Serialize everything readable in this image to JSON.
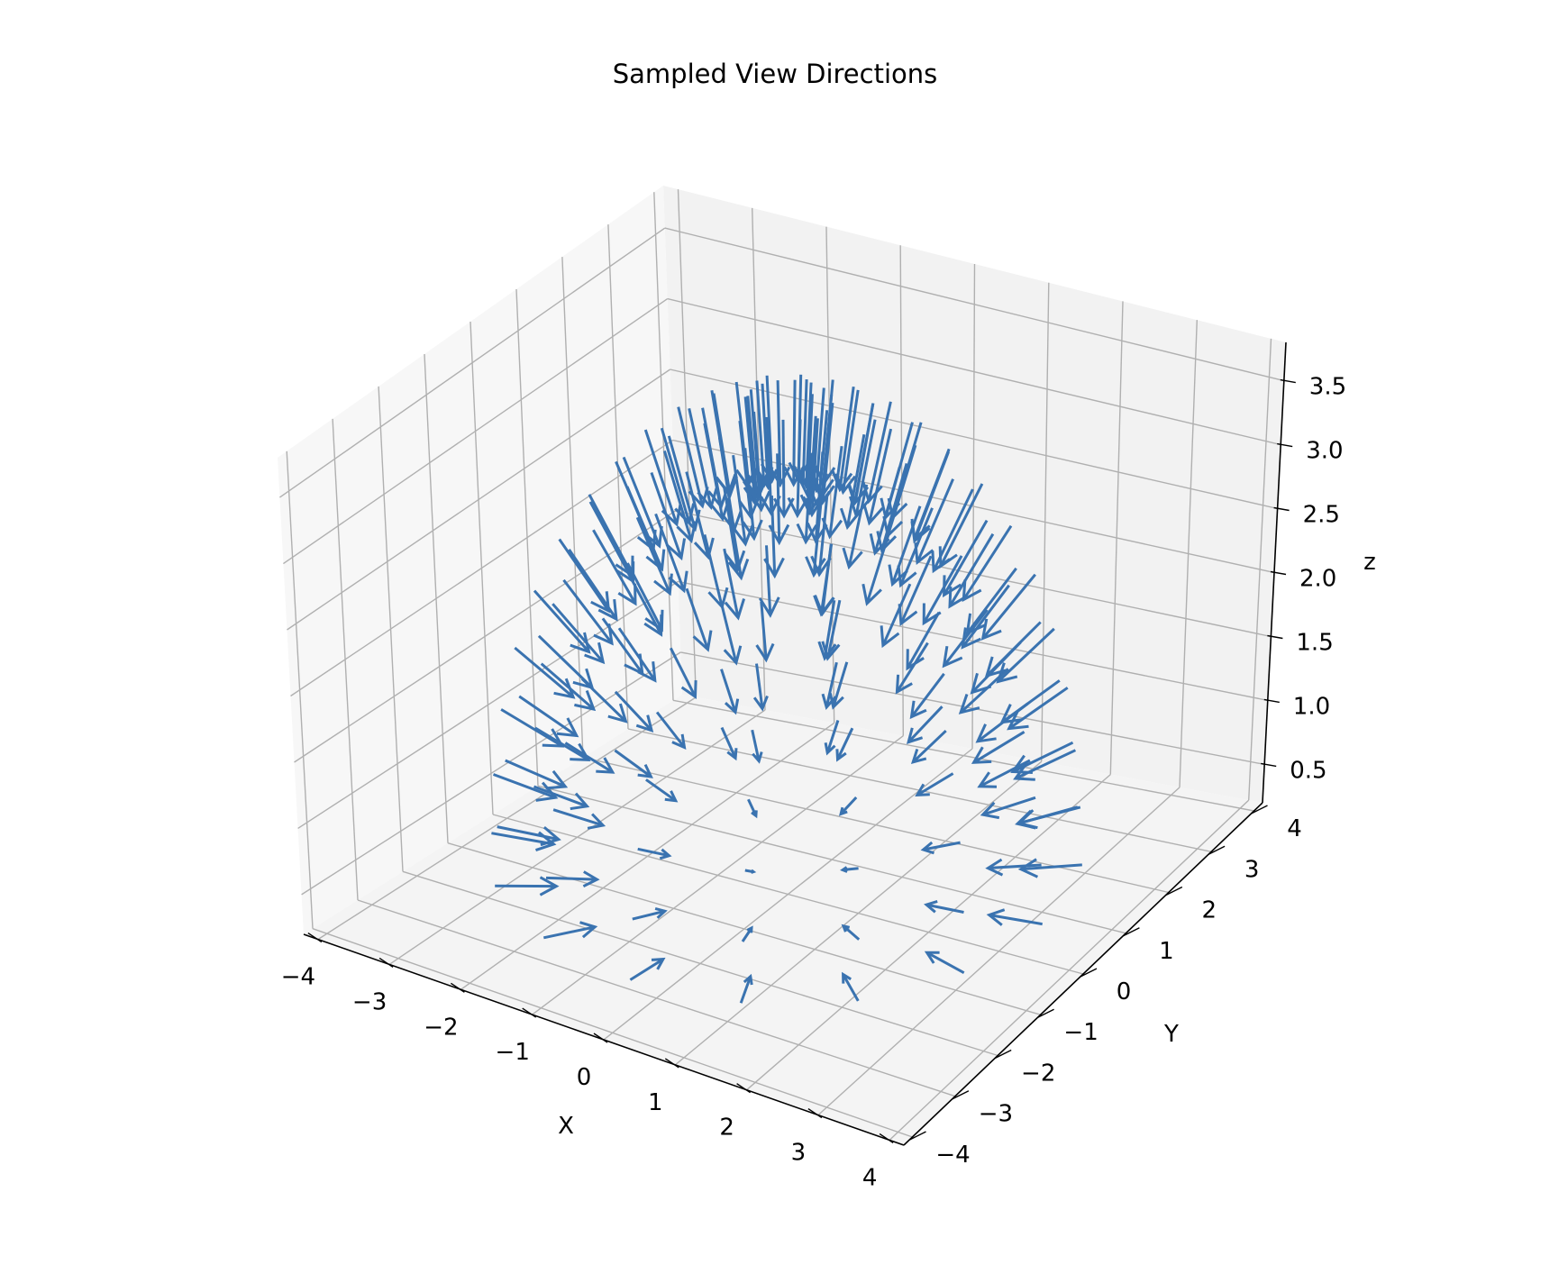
{
  "chart_data": {
    "type": "quiver3d",
    "title": "Sampled View Directions",
    "xlabel": "X",
    "ylabel": "Y",
    "zlabel": "z",
    "xlim": [
      -4.2,
      4.2
    ],
    "ylim": [
      -4.2,
      4.2
    ],
    "zlim": [
      0.2,
      3.8
    ],
    "xticks": [
      -4,
      -3,
      -2,
      -1,
      0,
      1,
      2,
      3,
      4
    ],
    "yticks": [
      -4,
      -3,
      -2,
      -1,
      0,
      1,
      2,
      3,
      4
    ],
    "zticks": [
      0.5,
      1.0,
      1.5,
      2.0,
      2.5,
      3.0,
      3.5
    ],
    "xtick_labels": [
      "−4",
      "−3",
      "−2",
      "−1",
      "0",
      "1",
      "2",
      "3",
      "4"
    ],
    "ytick_labels": [
      "−4",
      "−3",
      "−2",
      "−1",
      "0",
      "1",
      "2",
      "3",
      "4"
    ],
    "ztick_labels": [
      "0.5",
      "1.0",
      "1.5",
      "2.0",
      "2.5",
      "3.0",
      "3.5"
    ],
    "grid": true,
    "arrow_color": "#3a73b0",
    "sampling": {
      "shape": "upper hemisphere of camera positions around the origin, each arrow pointing toward the object",
      "radius": 3.6,
      "center_z": 0.3,
      "elevations_deg": [
        3,
        10,
        18,
        26,
        34,
        42,
        50,
        58,
        66,
        74,
        82
      ],
      "azimuth_count": 16,
      "arrow_length": 0.75
    }
  }
}
